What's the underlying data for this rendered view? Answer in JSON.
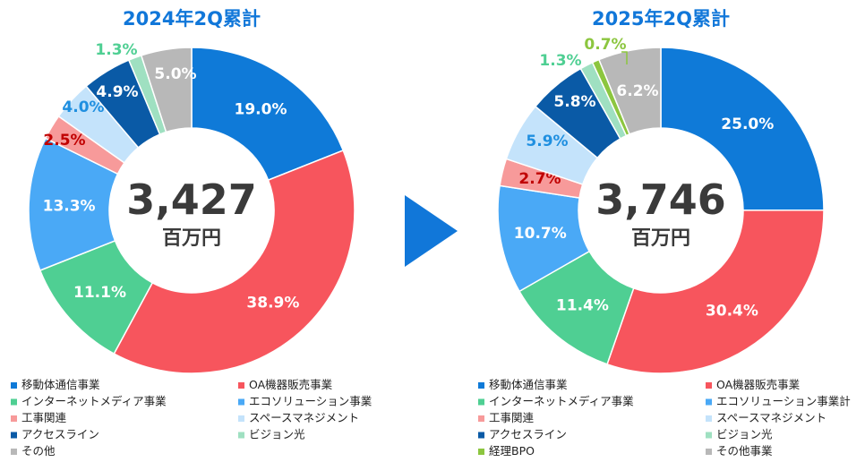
{
  "colors": {
    "title": "#1177d9",
    "arrow": "#1177d9",
    "center_text": "#3a3a3a",
    "white": "#ffffff"
  },
  "chart_data": [
    {
      "type": "pie",
      "title": "2024年2Q累計",
      "center_value": "3,427",
      "center_unit": "百万円",
      "slices": [
        {
          "label": "移動体通信事業",
          "value": 19.0,
          "display": "19.0%",
          "color": "#0f7ad8"
        },
        {
          "label": "OA機器販売事業",
          "value": 38.9,
          "display": "38.9%",
          "color": "#f7555d"
        },
        {
          "label": "インターネットメディア事業",
          "value": 11.1,
          "display": "11.1%",
          "color": "#4fcf93"
        },
        {
          "label": "エコソリューション事業",
          "value": 13.3,
          "display": "13.3%",
          "color": "#4aa9f6"
        },
        {
          "label": "工事関連",
          "value": 2.5,
          "display": "2.5%",
          "color": "#f79a9a"
        },
        {
          "label": "スペースマネジメント",
          "value": 4.0,
          "display": "4.0%",
          "color": "#c4e3fb"
        },
        {
          "label": "アクセスライン",
          "value": 4.9,
          "display": "4.9%",
          "color": "#0a5aa6"
        },
        {
          "label": "ビジョン光",
          "value": 1.3,
          "display": "1.3%",
          "color": "#9fe0c1"
        },
        {
          "label": "その他",
          "value": 5.0,
          "display": "5.0%",
          "color": "#b8b8b8"
        }
      ]
    },
    {
      "type": "pie",
      "title": "2025年2Q累計",
      "center_value": "3,746",
      "center_unit": "百万円",
      "slices": [
        {
          "label": "移動体通信事業",
          "value": 25.0,
          "display": "25.0%",
          "color": "#0f7ad8"
        },
        {
          "label": "OA機器販売事業",
          "value": 30.4,
          "display": "30.4%",
          "color": "#f7555d"
        },
        {
          "label": "インターネットメディア事業",
          "value": 11.4,
          "display": "11.4%",
          "color": "#4fcf93"
        },
        {
          "label": "エコソリューション事業計",
          "value": 10.7,
          "display": "10.7%",
          "color": "#4aa9f6"
        },
        {
          "label": "工事関連",
          "value": 2.7,
          "display": "2.7%",
          "color": "#f79a9a"
        },
        {
          "label": "スペースマネジメント",
          "value": 5.9,
          "display": "5.9%",
          "color": "#c4e3fb"
        },
        {
          "label": "アクセスライン",
          "value": 5.8,
          "display": "5.8%",
          "color": "#0a5aa6"
        },
        {
          "label": "ビジョン光",
          "value": 1.3,
          "display": "1.3%",
          "color": "#9fe0c1"
        },
        {
          "label": "経理BPO",
          "value": 0.7,
          "display": "0.7%",
          "color": "#8cc63f"
        },
        {
          "label": "その他事業",
          "value": 6.2,
          "display": "6.2%",
          "color": "#b8b8b8"
        }
      ]
    }
  ]
}
